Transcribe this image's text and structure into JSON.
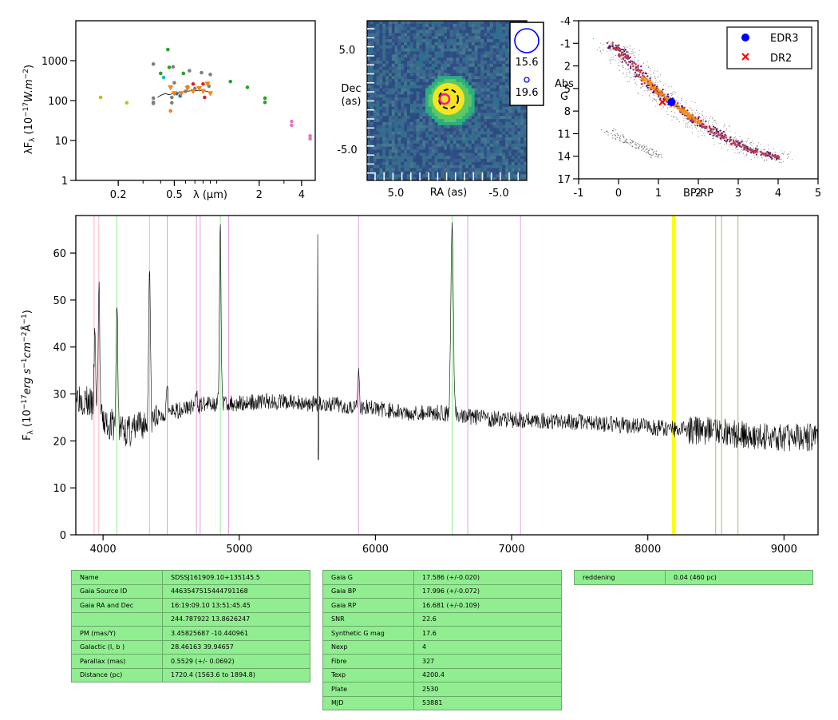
{
  "colors": {
    "sed_green": "#2ca02c",
    "sed_grey": "#7f7f7f",
    "sed_orange": "#ff7f0e",
    "sed_red": "#d62728",
    "sed_pink": "#e377c2",
    "sed_olive": "#bcbd22",
    "sed_cyan": "#17becf",
    "sed_blue": "#1f77b4",
    "edr3": "#0000ff",
    "dr2": "#ff0000",
    "table_bg": "#90ee90",
    "line_pink": "#ffb6c1",
    "line_green": "#90ee90",
    "line_violet": "#dda0dd",
    "line_yellow": "#ffff00",
    "line_tan": "#d2b48c"
  },
  "chart_data": [
    {
      "type": "scatter",
      "panel": "sed",
      "xlabel": "λ (μm)",
      "ylabel": "λF_λ (10^-17 W.m^-2)",
      "xscale": "log",
      "yscale": "log",
      "xlim": [
        0.1,
        5.0
      ],
      "ylim": [
        1,
        10000
      ],
      "xticks": [
        "0.2",
        "0.5",
        "2",
        "4"
      ],
      "yticks": [
        "1",
        "10",
        "100",
        "1000"
      ],
      "points": [
        {
          "x": 0.15,
          "y": 120,
          "c": "olive"
        },
        {
          "x": 0.23,
          "y": 88,
          "c": "olive"
        },
        {
          "x": 0.355,
          "y": 820,
          "c": "grey"
        },
        {
          "x": 0.355,
          "y": 115,
          "c": "grey"
        },
        {
          "x": 0.355,
          "y": 90,
          "c": "grey"
        },
        {
          "x": 0.355,
          "y": 85,
          "c": "grey"
        },
        {
          "x": 0.4,
          "y": 480,
          "c": "green"
        },
        {
          "x": 0.42,
          "y": 380,
          "c": "cyan"
        },
        {
          "x": 0.45,
          "y": 1900,
          "c": "green"
        },
        {
          "x": 0.46,
          "y": 680,
          "c": "green"
        },
        {
          "x": 0.47,
          "y": 55,
          "c": "orange"
        },
        {
          "x": 0.48,
          "y": 88,
          "c": "grey"
        },
        {
          "x": 0.48,
          "y": 120,
          "c": "grey"
        },
        {
          "x": 0.49,
          "y": 700,
          "c": "grey"
        },
        {
          "x": 0.5,
          "y": 280,
          "c": "grey"
        },
        {
          "x": 0.52,
          "y": 150,
          "c": "blue"
        },
        {
          "x": 0.55,
          "y": 130,
          "c": "blue"
        },
        {
          "x": 0.58,
          "y": 480,
          "c": "green"
        },
        {
          "x": 0.6,
          "y": 170,
          "c": "grey"
        },
        {
          "x": 0.62,
          "y": 220,
          "c": "grey"
        },
        {
          "x": 0.64,
          "y": 560,
          "c": "grey"
        },
        {
          "x": 0.68,
          "y": 260,
          "c": "red"
        },
        {
          "x": 0.7,
          "y": 200,
          "c": "grey"
        },
        {
          "x": 0.78,
          "y": 500,
          "c": "grey"
        },
        {
          "x": 0.8,
          "y": 260,
          "c": "red"
        },
        {
          "x": 0.82,
          "y": 120,
          "c": "red"
        },
        {
          "x": 0.88,
          "y": 230,
          "c": "grey"
        },
        {
          "x": 0.9,
          "y": 450,
          "c": "grey"
        },
        {
          "x": 1.25,
          "y": 300,
          "c": "green"
        },
        {
          "x": 1.65,
          "y": 215,
          "c": "green"
        },
        {
          "x": 2.2,
          "y": 115,
          "c": "green"
        },
        {
          "x": 2.2,
          "y": 90,
          "c": "green"
        },
        {
          "x": 3.4,
          "y": 30,
          "c": "pink"
        },
        {
          "x": 3.4,
          "y": 24,
          "c": "pink"
        },
        {
          "x": 4.6,
          "y": 13,
          "c": "pink"
        },
        {
          "x": 4.6,
          "y": 11,
          "c": "pink"
        }
      ],
      "orange_triangles": [
        {
          "x": 0.47,
          "y": 210
        },
        {
          "x": 0.5,
          "y": 150
        },
        {
          "x": 0.56,
          "y": 150
        },
        {
          "x": 0.62,
          "y": 200
        },
        {
          "x": 0.68,
          "y": 170
        },
        {
          "x": 0.75,
          "y": 200
        },
        {
          "x": 0.8,
          "y": 170
        },
        {
          "x": 0.86,
          "y": 260
        },
        {
          "x": 0.9,
          "y": 150
        }
      ],
      "spectrum_overlay": [
        [
          0.38,
          120
        ],
        [
          0.4,
          135
        ],
        [
          0.43,
          150
        ],
        [
          0.46,
          140
        ],
        [
          0.5,
          155
        ],
        [
          0.55,
          160
        ],
        [
          0.6,
          170
        ],
        [
          0.65,
          175
        ],
        [
          0.7,
          180
        ],
        [
          0.75,
          175
        ],
        [
          0.8,
          180
        ],
        [
          0.85,
          170
        ],
        [
          0.9,
          160
        ]
      ]
    },
    {
      "type": "heatmap",
      "panel": "image",
      "xlabel": "RA (as)",
      "ylabel": "Dec\n(as)",
      "xticks": [
        "5.0",
        "-5.0"
      ],
      "yticks": [
        "5.0",
        "-5.0"
      ],
      "legend": [
        "15.6",
        "19.6"
      ]
    },
    {
      "type": "scatter",
      "panel": "cmd",
      "xlabel": "BP-RP",
      "ylabel": "Abs\nG",
      "xlim": [
        -1,
        5
      ],
      "ylim": [
        17,
        -4
      ],
      "xticks": [
        "-1",
        "0",
        "1",
        "2",
        "3",
        "4",
        "5"
      ],
      "yticks": [
        "-4",
        "-1",
        "2",
        "5",
        "8",
        "11",
        "14",
        "17"
      ],
      "legend": [
        {
          "name": "EDR3",
          "marker": "circle",
          "color": "#0000ff"
        },
        {
          "name": "DR2",
          "marker": "x",
          "color": "#ff0000"
        }
      ],
      "edr3_point": {
        "x": 1.33,
        "y": 6.8
      },
      "dr2_point": {
        "x": 1.1,
        "y": 6.8
      }
    },
    {
      "type": "line",
      "panel": "spectrum",
      "xlabel": "",
      "ylabel": "F_λ (10^-17 erg s^-1 cm^-2 Å^-1)",
      "xlim": [
        3800,
        9250
      ],
      "ylim": [
        0,
        68
      ],
      "xticks": [
        "4000",
        "5000",
        "6000",
        "7000",
        "8000",
        "9000"
      ],
      "yticks": [
        "0",
        "10",
        "20",
        "30",
        "40",
        "50",
        "60"
      ],
      "continuum": [
        [
          3800,
          30
        ],
        [
          3900,
          28
        ],
        [
          4000,
          24
        ],
        [
          4200,
          22
        ],
        [
          4400,
          25
        ],
        [
          4600,
          27
        ],
        [
          4800,
          28
        ],
        [
          5000,
          28
        ],
        [
          5200,
          28.5
        ],
        [
          5500,
          28
        ],
        [
          5800,
          27.5
        ],
        [
          6000,
          27
        ],
        [
          6200,
          26
        ],
        [
          6500,
          26
        ],
        [
          6700,
          25
        ],
        [
          7000,
          24.5
        ],
        [
          7500,
          24
        ],
        [
          8000,
          23
        ],
        [
          8200,
          22.5
        ],
        [
          8500,
          22
        ],
        [
          8800,
          21
        ],
        [
          9000,
          20.5
        ],
        [
          9250,
          21
        ]
      ],
      "emission": [
        {
          "x": 3940,
          "h": 42
        },
        {
          "x": 3970,
          "h": 53
        },
        {
          "x": 4102,
          "h": 49
        },
        {
          "x": 4341,
          "h": 59
        },
        {
          "x": 4471,
          "h": 33
        },
        {
          "x": 4686,
          "h": 30
        },
        {
          "x": 4861,
          "h": 65
        },
        {
          "x": 5876,
          "h": 34
        },
        {
          "x": 6563,
          "h": 67
        }
      ],
      "lines_pink": [
        3934,
        3969
      ],
      "lines_green": [
        4102,
        4341,
        4861,
        6563,
        8498,
        8542,
        8662
      ],
      "lines_violet": [
        4471,
        4686,
        4713,
        4922,
        5876,
        6678,
        7065
      ],
      "lines_yellow": [
        8183,
        8195
      ],
      "lines_tan": [
        8498,
        8542,
        8662
      ]
    }
  ],
  "tables": {
    "t1": [
      [
        "Name",
        "SDSSJ161909.10+135145.5"
      ],
      [
        "Gaia Source ID",
        "4463547515444791168"
      ],
      [
        "Gaia RA and Dec",
        "16:19:09.10     13:51:45.45"
      ],
      [
        "",
        "244.787922     13.8626247"
      ],
      [
        "PM (mas/Y)",
        "3.45825687     -10.440961"
      ],
      [
        "Galactic (l, b )",
        "28.46163     39.94657"
      ],
      [
        "Parallax (mas)",
        "0.5529 (+/- 0.0692)"
      ],
      [
        "Distance (pc)",
        "1720.4 (1563.6 to 1894.8)"
      ]
    ],
    "t2": [
      [
        "Gaia G",
        "17.586 (+/-0.020)"
      ],
      [
        "Gaia BP",
        "17.996 (+/-0.072)"
      ],
      [
        "Gaia RP",
        "16.681 (+/-0.109)"
      ],
      [
        "SNR",
        "22.6"
      ],
      [
        "Synthetic G mag",
        "17.6"
      ],
      [
        "Nexp",
        "4"
      ],
      [
        "Fibre",
        "327"
      ],
      [
        "Texp",
        "4200.4"
      ],
      [
        "Plate",
        "2530"
      ],
      [
        "MJD",
        "53881"
      ]
    ],
    "t3": [
      [
        "reddening",
        "0.04 (460 pc)"
      ]
    ]
  }
}
